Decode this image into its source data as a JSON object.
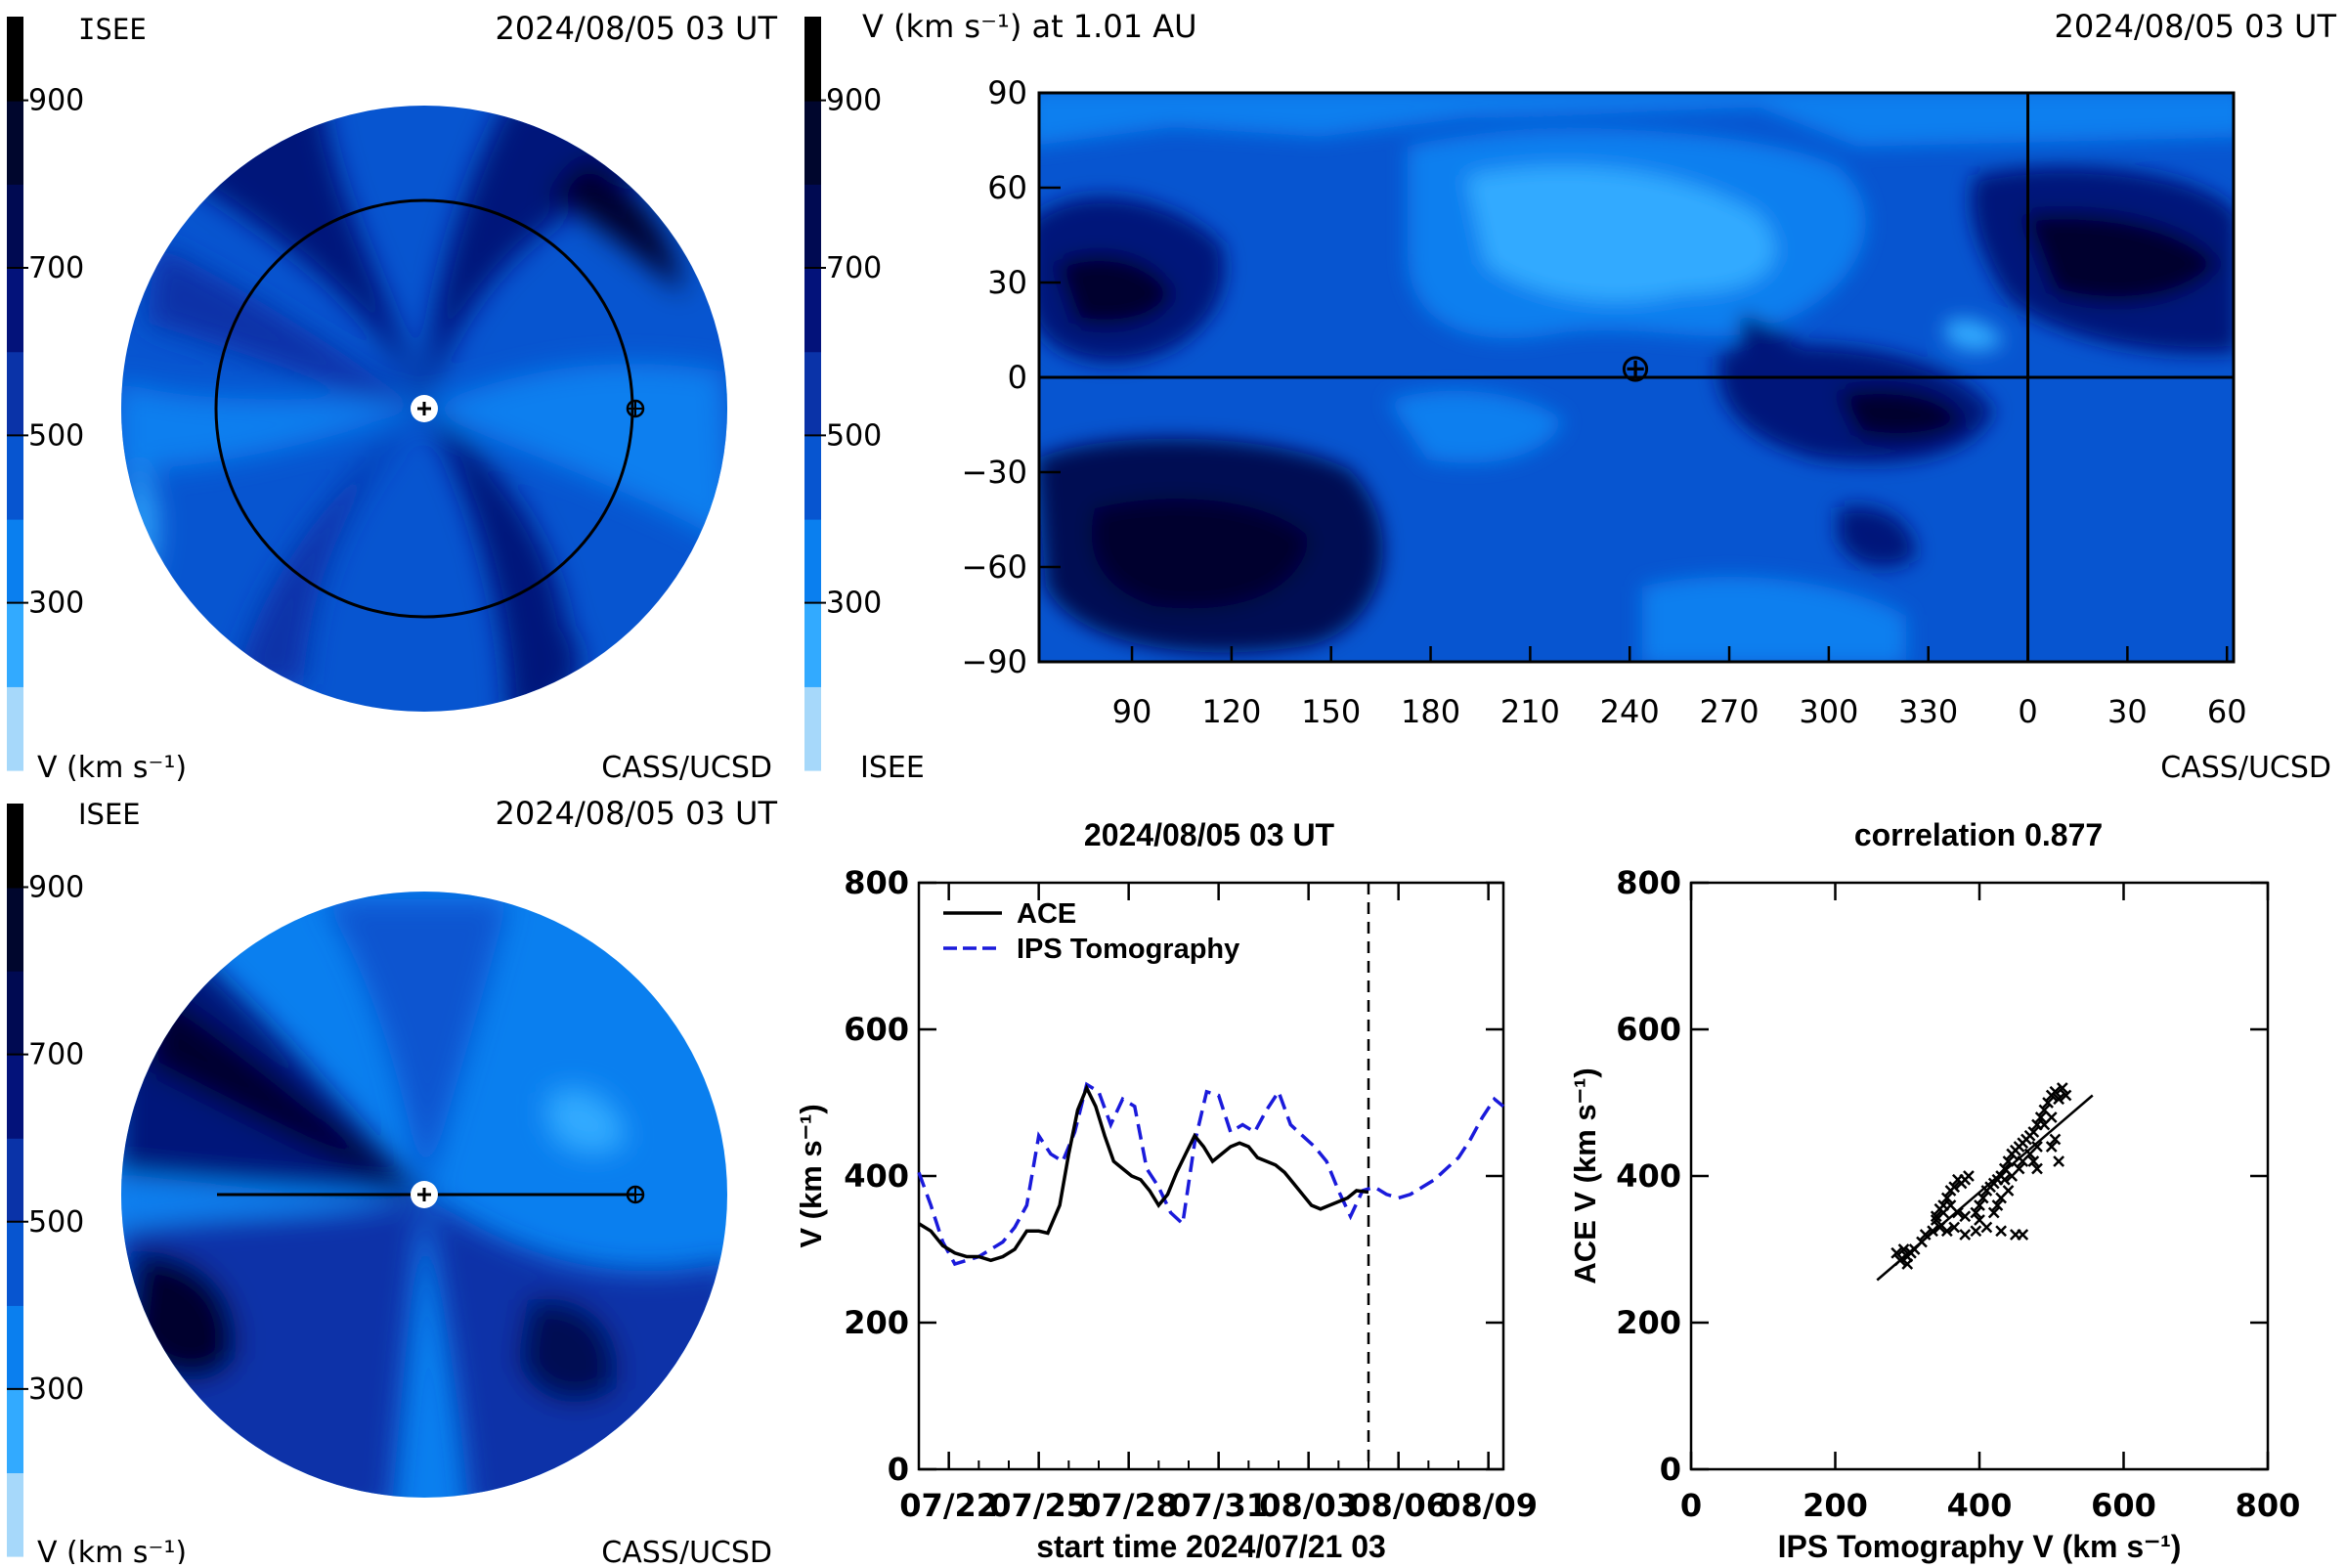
{
  "colors": {
    "level_lt200": "#a6d8fa",
    "level_200_300": "#32aaff",
    "level_300_400": "#0a7fef",
    "level_400_500": "#0755d0",
    "level_500_600": "#0a33a8",
    "level_600_700": "#03127a",
    "level_700_800": "#000a52",
    "level_800_900": "#00062d",
    "level_900p": "#000000",
    "ace_line": "#000000",
    "ips_line": "#1a1adb"
  },
  "colorbar": {
    "ticks": [
      "900",
      "700",
      "500",
      "300"
    ]
  },
  "panel_top_left": {
    "org_left": "ISEE",
    "date": "2024/08/05 03 UT",
    "unit_label": "V (km s⁻¹)",
    "org_right": "CASS/UCSD"
  },
  "panel_top_right": {
    "title_left": "V (km s⁻¹) at 1.01 AU",
    "date": "2024/08/05 03 UT",
    "org_left": "ISEE",
    "org_right": "CASS/UCSD",
    "y_ticks": [
      "90",
      "60",
      "30",
      "0",
      "−30",
      "−60",
      "−90"
    ],
    "x_ticks": [
      "90",
      "120",
      "150",
      "180",
      "210",
      "240",
      "270",
      "300",
      "330",
      "0",
      "30",
      "60"
    ],
    "earth_symbol": "⊕"
  },
  "panel_bottom_left": {
    "org_left": "ISEE",
    "date": "2024/08/05 03 UT",
    "unit_label": "V (km s⁻¹)",
    "org_right": "CASS/UCSD"
  },
  "chart_data": [
    {
      "type": "line",
      "title": "2024/08/05 03 UT",
      "xlabel": "start time 2024/07/21 03",
      "ylabel": "V (km s⁻¹)",
      "x_tick_labels": [
        "07/22",
        "07/25",
        "07/28",
        "07/31",
        "08/03",
        "08/06",
        "08/09"
      ],
      "x_tick_days": [
        1,
        4,
        7,
        10,
        13,
        16,
        19
      ],
      "y_ticks": [
        0,
        200,
        400,
        600,
        800
      ],
      "xlim_days": [
        0,
        19.5
      ],
      "ylim": [
        0,
        800
      ],
      "current_time_day": 15.0,
      "grid": false,
      "legend": "top-left",
      "series": [
        {
          "name": "ACE",
          "style": "solid",
          "x": [
            0.0,
            0.4,
            0.8,
            1.2,
            1.6,
            2.0,
            2.4,
            2.8,
            3.2,
            3.6,
            4.0,
            4.3,
            4.7,
            5.0,
            5.3,
            5.6,
            5.9,
            6.2,
            6.5,
            6.8,
            7.1,
            7.4,
            7.7,
            8.0,
            8.3,
            8.6,
            8.9,
            9.2,
            9.5,
            9.8,
            10.1,
            10.4,
            10.7,
            11.0,
            11.3,
            11.6,
            11.9,
            12.2,
            12.5,
            12.8,
            13.1,
            13.4,
            13.7,
            14.0,
            14.3,
            14.6,
            15.0
          ],
          "y": [
            335,
            325,
            305,
            295,
            290,
            290,
            285,
            290,
            300,
            325,
            325,
            322,
            360,
            430,
            490,
            520,
            495,
            455,
            420,
            410,
            400,
            395,
            380,
            360,
            375,
            405,
            430,
            455,
            440,
            420,
            430,
            440,
            445,
            440,
            425,
            420,
            415,
            405,
            390,
            375,
            360,
            355,
            360,
            365,
            370,
            380,
            378
          ]
        },
        {
          "name": "IPS Tomography",
          "style": "dashed",
          "x": [
            0.0,
            0.4,
            0.8,
            1.2,
            1.6,
            2.0,
            2.4,
            2.8,
            3.2,
            3.6,
            4.0,
            4.4,
            4.8,
            5.2,
            5.6,
            6.0,
            6.4,
            6.8,
            7.2,
            7.6,
            8.0,
            8.4,
            8.8,
            9.2,
            9.6,
            10.0,
            10.4,
            10.8,
            11.2,
            11.6,
            12.0,
            12.4,
            12.8,
            13.2,
            13.6,
            14.0,
            14.4,
            14.8,
            15.2,
            15.6,
            16.0,
            16.4,
            16.8,
            17.2,
            17.6,
            18.0,
            18.4,
            18.8,
            19.2,
            19.5
          ],
          "y": [
            405,
            360,
            310,
            280,
            285,
            290,
            300,
            310,
            330,
            360,
            455,
            430,
            420,
            460,
            525,
            515,
            470,
            505,
            495,
            410,
            385,
            350,
            335,
            445,
            515,
            510,
            460,
            470,
            460,
            490,
            515,
            470,
            455,
            440,
            420,
            380,
            345,
            380,
            385,
            375,
            370,
            375,
            385,
            395,
            410,
            425,
            450,
            480,
            505,
            495
          ]
        }
      ]
    },
    {
      "type": "scatter",
      "title": "correlation 0.877",
      "xlabel": "IPS Tomography V (km s⁻¹)",
      "ylabel": "ACE V (km s⁻¹)",
      "xlim": [
        0,
        800
      ],
      "ylim": [
        0,
        800
      ],
      "x_ticks": [
        0,
        200,
        400,
        600,
        800
      ],
      "y_ticks": [
        0,
        200,
        400,
        600,
        800
      ],
      "marker": "x",
      "fit_line": [
        [
          258,
          258
        ],
        [
          557,
          510
        ]
      ],
      "points": [
        [
          290,
          285
        ],
        [
          295,
          300
        ],
        [
          300,
          290
        ],
        [
          305,
          295
        ],
        [
          310,
          300
        ],
        [
          300,
          280
        ],
        [
          285,
          295
        ],
        [
          320,
          310
        ],
        [
          325,
          320
        ],
        [
          335,
          325
        ],
        [
          345,
          330
        ],
        [
          355,
          325
        ],
        [
          365,
          330
        ],
        [
          380,
          320
        ],
        [
          395,
          325
        ],
        [
          410,
          330
        ],
        [
          430,
          325
        ],
        [
          450,
          320
        ],
        [
          460,
          320
        ],
        [
          340,
          340
        ],
        [
          345,
          355
        ],
        [
          350,
          360
        ],
        [
          355,
          370
        ],
        [
          360,
          380
        ],
        [
          365,
          385
        ],
        [
          375,
          390
        ],
        [
          380,
          395
        ],
        [
          370,
          395
        ],
        [
          385,
          400
        ],
        [
          360,
          360
        ],
        [
          350,
          350
        ],
        [
          340,
          345
        ],
        [
          395,
          350
        ],
        [
          400,
          360
        ],
        [
          405,
          370
        ],
        [
          410,
          380
        ],
        [
          415,
          385
        ],
        [
          420,
          390
        ],
        [
          425,
          395
        ],
        [
          430,
          400
        ],
        [
          435,
          410
        ],
        [
          440,
          420
        ],
        [
          445,
          430
        ],
        [
          450,
          435
        ],
        [
          455,
          440
        ],
        [
          460,
          445
        ],
        [
          465,
          450
        ],
        [
          470,
          455
        ],
        [
          475,
          460
        ],
        [
          480,
          470
        ],
        [
          485,
          480
        ],
        [
          490,
          490
        ],
        [
          495,
          500
        ],
        [
          500,
          510
        ],
        [
          505,
          515
        ],
        [
          515,
          520
        ],
        [
          520,
          510
        ],
        [
          510,
          505
        ],
        [
          500,
          480
        ],
        [
          490,
          470
        ],
        [
          480,
          440
        ],
        [
          470,
          430
        ],
        [
          460,
          420
        ],
        [
          455,
          410
        ],
        [
          445,
          400
        ],
        [
          435,
          395
        ],
        [
          500,
          440
        ],
        [
          505,
          450
        ],
        [
          510,
          420
        ],
        [
          480,
          410
        ],
        [
          475,
          420
        ],
        [
          440,
          380
        ],
        [
          430,
          370
        ],
        [
          425,
          360
        ],
        [
          420,
          350
        ],
        [
          400,
          340
        ],
        [
          380,
          345
        ],
        [
          370,
          350
        ]
      ]
    }
  ]
}
